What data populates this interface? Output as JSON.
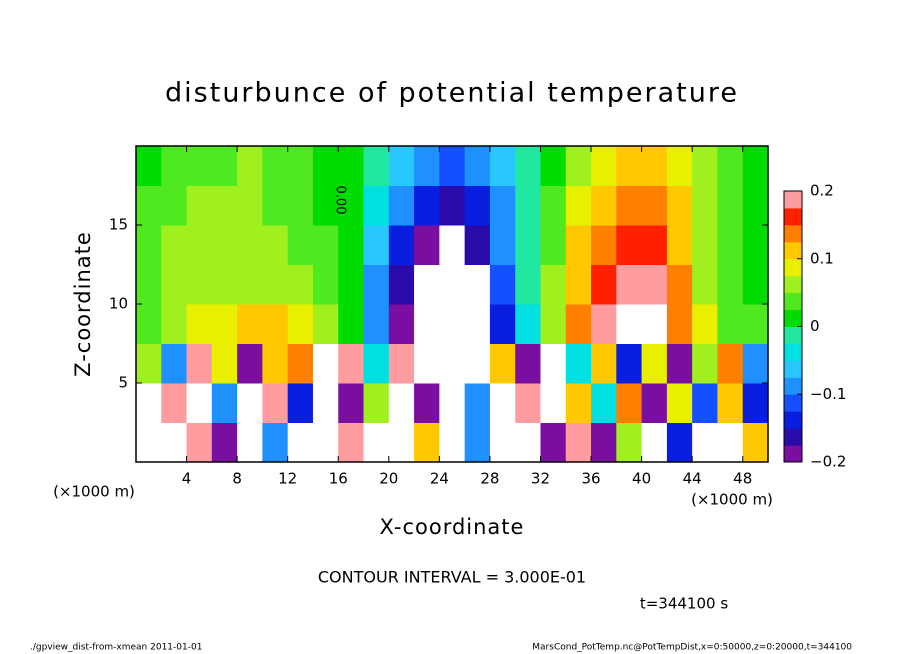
{
  "chart_data": {
    "type": "heatmap",
    "title": "disturbunce of potential temperature",
    "x_label": "X-coordinate",
    "y_label": "Z-coordinate",
    "x_units": "(×1000 m)",
    "xlim": [
      0,
      50
    ],
    "ylim": [
      0,
      20
    ],
    "xticks": [
      4,
      8,
      12,
      16,
      20,
      24,
      28,
      32,
      36,
      40,
      44,
      48
    ],
    "yticks": [
      5,
      10,
      15
    ],
    "x": [
      1,
      3,
      5,
      7,
      9,
      11,
      13,
      15,
      17,
      19,
      21,
      23,
      25,
      27,
      29,
      31,
      33,
      35,
      37,
      39,
      41,
      43,
      45,
      47,
      49
    ],
    "y": [
      1.25,
      3.75,
      6.25,
      8.75,
      11.25,
      13.75,
      16.25,
      18.75
    ],
    "z": [
      [
        0.25,
        -0.26,
        0.18,
        -0.2,
        0.22,
        -0.1,
        0.26,
        -0.25,
        0.2,
        -0.27,
        0.26,
        0.1,
        0.25,
        -0.1,
        -0.22,
        0.24,
        -0.18,
        0.2,
        -0.2,
        0.05,
        0.25,
        -0.15,
        0.22,
        -0.25,
        0.1
      ],
      [
        -0.22,
        0.18,
        0.25,
        -0.1,
        -0.26,
        0.2,
        -0.15,
        0.26,
        -0.2,
        0.05,
        -0.24,
        -0.18,
        0.26,
        -0.1,
        -0.25,
        0.2,
        -0.22,
        0.1,
        -0.05,
        0.15,
        -0.2,
        0.08,
        -0.12,
        0.1,
        -0.15
      ],
      [
        0.05,
        -0.1,
        0.2,
        0.08,
        -0.2,
        0.1,
        0.15,
        -0.25,
        0.2,
        -0.05,
        0.18,
        -0.22,
        -0.27,
        -0.25,
        0.12,
        -0.18,
        0.22,
        -0.05,
        0.1,
        -0.15,
        0.08,
        -0.2,
        0.05,
        0.15,
        -0.1
      ],
      [
        0.04,
        0.06,
        0.08,
        0.09,
        0.1,
        0.11,
        0.08,
        0.05,
        0.01,
        -0.1,
        -0.18,
        -0.25,
        -0.26,
        -0.25,
        -0.15,
        -0.03,
        0.05,
        0.13,
        0.2,
        0.25,
        0.21,
        0.14,
        0.08,
        0.04,
        0.03
      ],
      [
        0.03,
        0.05,
        0.07,
        0.06,
        0.07,
        0.06,
        0.05,
        0.03,
        0,
        -0.08,
        -0.16,
        -0.21,
        -0.25,
        -0.22,
        -0.12,
        -0.02,
        0.05,
        0.12,
        0.17,
        0.19,
        0.18,
        0.13,
        0.07,
        0.03,
        0.02
      ],
      [
        0.03,
        0.05,
        0.06,
        0.06,
        0.05,
        0.05,
        0.04,
        0.03,
        0,
        -0.06,
        -0.13,
        -0.18,
        -0.21,
        -0.17,
        -0.1,
        -0.02,
        0.04,
        0.1,
        0.15,
        0.17,
        0.16,
        0.12,
        0.06,
        0.03,
        0.02
      ],
      [
        0.03,
        0.04,
        0.05,
        0.05,
        0.05,
        0.04,
        0.03,
        0.02,
        0,
        -0.04,
        -0.1,
        -0.15,
        -0.16,
        -0.14,
        -0.08,
        -0.02,
        0.03,
        0.08,
        0.12,
        0.14,
        0.13,
        0.1,
        0.06,
        0.03,
        0.02
      ],
      [
        0.02,
        0.03,
        0.04,
        0.04,
        0.05,
        0.04,
        0.03,
        0.02,
        0.01,
        -0.02,
        -0.06,
        -0.1,
        -0.12,
        -0.1,
        -0.06,
        -0.02,
        0.02,
        0.05,
        0.08,
        0.1,
        0.1,
        0.08,
        0.05,
        0.03,
        0.02
      ]
    ],
    "clim": [
      -0.2,
      0.2
    ],
    "colors": [
      "#7a0ea0",
      "#2a0aa8",
      "#0a1ee0",
      "#1450ff",
      "#1e90ff",
      "#28c8ff",
      "#00e0e0",
      "#20e8a0",
      "#00dc00",
      "#50e81e",
      "#a0f020",
      "#e8f000",
      "#ffc800",
      "#ff8000",
      "#ff2000",
      "#ff9ca0"
    ],
    "over_color": "#ffffff",
    "colorbar_ticks": [
      {
        "value": -0.2,
        "label": "−0.2"
      },
      {
        "value": -0.1,
        "label": "−0.1"
      },
      0,
      0.1,
      0.2
    ],
    "contour_label": "0.00",
    "contour_interval": "CONTOUR INTERVAL = 3.000E-01",
    "time_label": "t=344100 s",
    "footer_left": "./gpview_dist-from-xmean  2011-01-01",
    "footer_right": "MarsCond_PotTemp.nc@PotTempDist,x=0:50000,z=0:20000,t=344100"
  }
}
